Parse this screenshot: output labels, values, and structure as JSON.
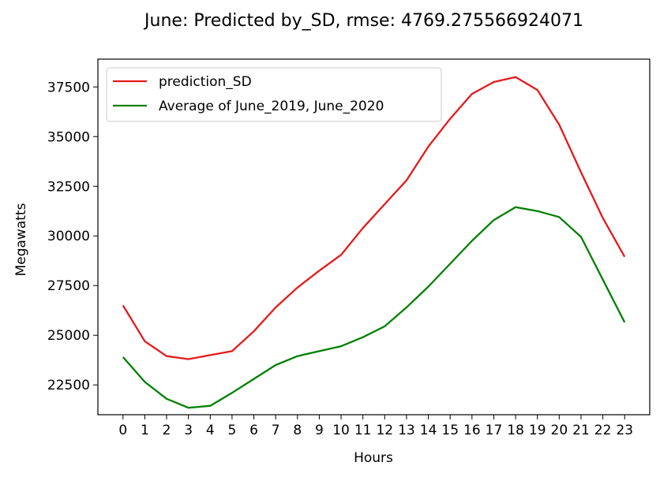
{
  "chart_data": {
    "type": "line",
    "title": "June: Predicted by_SD, rmse: 4769.275566924071",
    "xlabel": "Hours",
    "ylabel": "Megawatts",
    "x": [
      0,
      1,
      2,
      3,
      4,
      5,
      6,
      7,
      8,
      9,
      10,
      11,
      12,
      13,
      14,
      15,
      16,
      17,
      18,
      19,
      20,
      21,
      22,
      23
    ],
    "xlim": [
      -1.15,
      24.15
    ],
    "ylim": [
      21000,
      38900
    ],
    "yticks": [
      22500,
      25000,
      27500,
      30000,
      32500,
      35000,
      37500
    ],
    "grid": false,
    "legend_position": "upper-left",
    "series": [
      {
        "name": "prediction_SD",
        "color": "#e41a1c",
        "values": [
          26500,
          24700,
          23950,
          23800,
          24000,
          24200,
          25200,
          26400,
          27400,
          28250,
          29050,
          30400,
          31600,
          32800,
          34500,
          35900,
          37150,
          37750,
          38000,
          37350,
          35600,
          33200,
          30900,
          28950
        ]
      },
      {
        "name": "Average of June_2019, June_2020",
        "color": "#008000",
        "values": [
          23900,
          22650,
          21800,
          21350,
          21450,
          22100,
          22800,
          23500,
          23950,
          24200,
          24450,
          24900,
          25450,
          26400,
          27450,
          28600,
          29750,
          30800,
          31450,
          31250,
          30950,
          29950,
          27800,
          25650
        ]
      }
    ]
  }
}
